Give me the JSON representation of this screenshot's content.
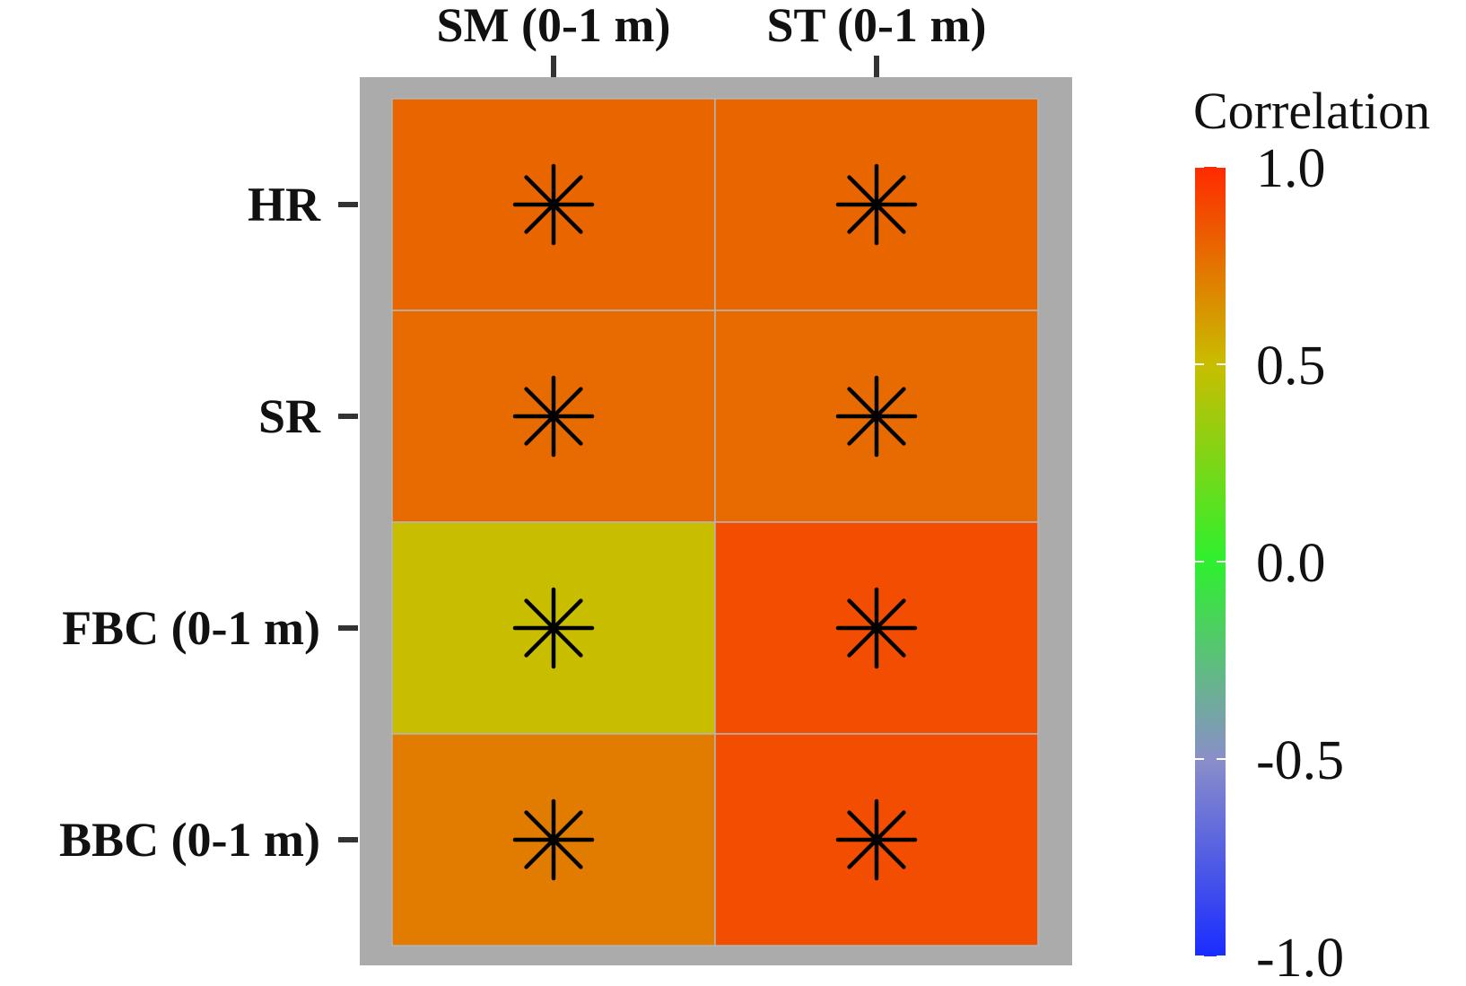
{
  "chart_data": {
    "type": "heatmap",
    "x_categories": [
      "SM (0-1 m)",
      "ST (0-1 m)"
    ],
    "y_categories": [
      "HR",
      "SR",
      "FBC (0-1 m)",
      "BBC (0-1 m)"
    ],
    "values": [
      [
        0.8,
        0.8
      ],
      [
        0.78,
        0.78
      ],
      [
        0.5,
        0.88
      ],
      [
        0.72,
        0.88
      ]
    ],
    "significance": [
      [
        true,
        true
      ],
      [
        true,
        true
      ],
      [
        true,
        true
      ],
      [
        true,
        true
      ]
    ],
    "significance_marker": "✳",
    "x_axis_position": "top",
    "legend": {
      "title": "Correlation",
      "ticks": [
        "1.0",
        "0.5",
        "0.0",
        "-0.5",
        "-1.0"
      ],
      "tick_values": [
        1.0,
        0.5,
        0.0,
        -0.5,
        -1.0
      ],
      "range": [
        -1.0,
        1.0
      ],
      "colors": [
        "#1a2cff",
        "#8a8fc8",
        "#2ef02e",
        "#c9bd00",
        "#ff2a00"
      ],
      "placement": "right"
    },
    "panel_background": "#ababab",
    "grid_color": "#b5b5b5"
  }
}
